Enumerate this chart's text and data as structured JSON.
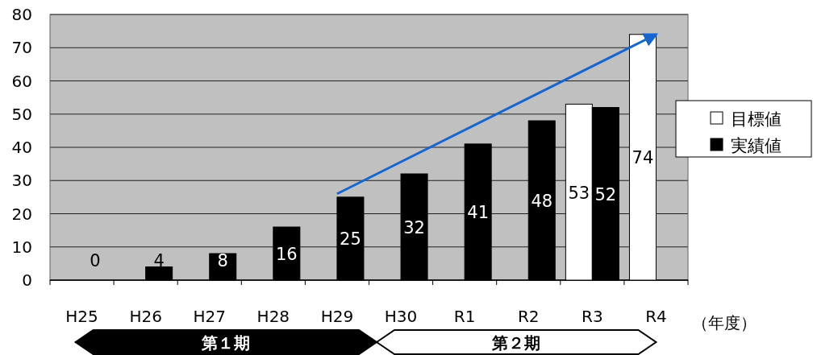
{
  "chart_data": {
    "type": "bar",
    "xlabel": "（年度）",
    "categories": [
      "H25",
      "H26",
      "H27",
      "H28",
      "H29",
      "H30",
      "R1",
      "R2",
      "R3",
      "R4"
    ],
    "series": [
      {
        "name": "目標値",
        "color": "#ffffff",
        "values": [
          null,
          null,
          null,
          null,
          null,
          null,
          null,
          null,
          53,
          74
        ],
        "value_labels": [
          null,
          null,
          null,
          null,
          null,
          null,
          null,
          null,
          "53",
          "74"
        ]
      },
      {
        "name": "実績値",
        "color": "#000000",
        "values": [
          0,
          4,
          8,
          16,
          25,
          32,
          41,
          48,
          52,
          null
        ],
        "value_labels": [
          "0",
          "4",
          "8",
          "16",
          "25",
          "32",
          "41",
          "48",
          "52",
          null
        ]
      },
      {
        "type": "line",
        "color": "#1566d0",
        "x": [
          "H29",
          "R4"
        ],
        "values": [
          26,
          74
        ]
      }
    ],
    "ylim": [
      0,
      80
    ],
    "yticks": [
      0,
      10,
      20,
      30,
      40,
      50,
      60,
      70,
      80
    ],
    "grid": "y",
    "legend": "right",
    "annotations": [
      "第１期",
      "第２期"
    ]
  }
}
